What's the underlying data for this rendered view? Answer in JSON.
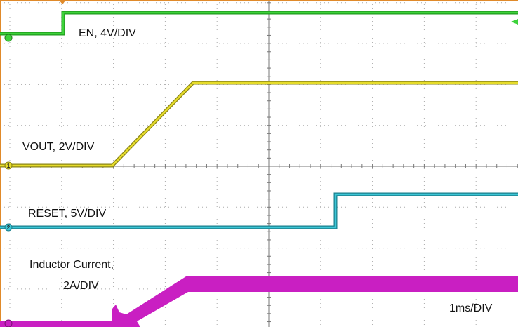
{
  "channels": [
    {
      "label": "EN, 4V/DIV"
    },
    {
      "label": "VOUT, 2V/DIV",
      "marker": "1"
    },
    {
      "label": "RESET, 5V/DIV",
      "marker": "2"
    },
    {
      "label": [
        "Inductor Current,",
        "2A/DIV"
      ]
    }
  ],
  "timebase": "1ms/DIV"
}
